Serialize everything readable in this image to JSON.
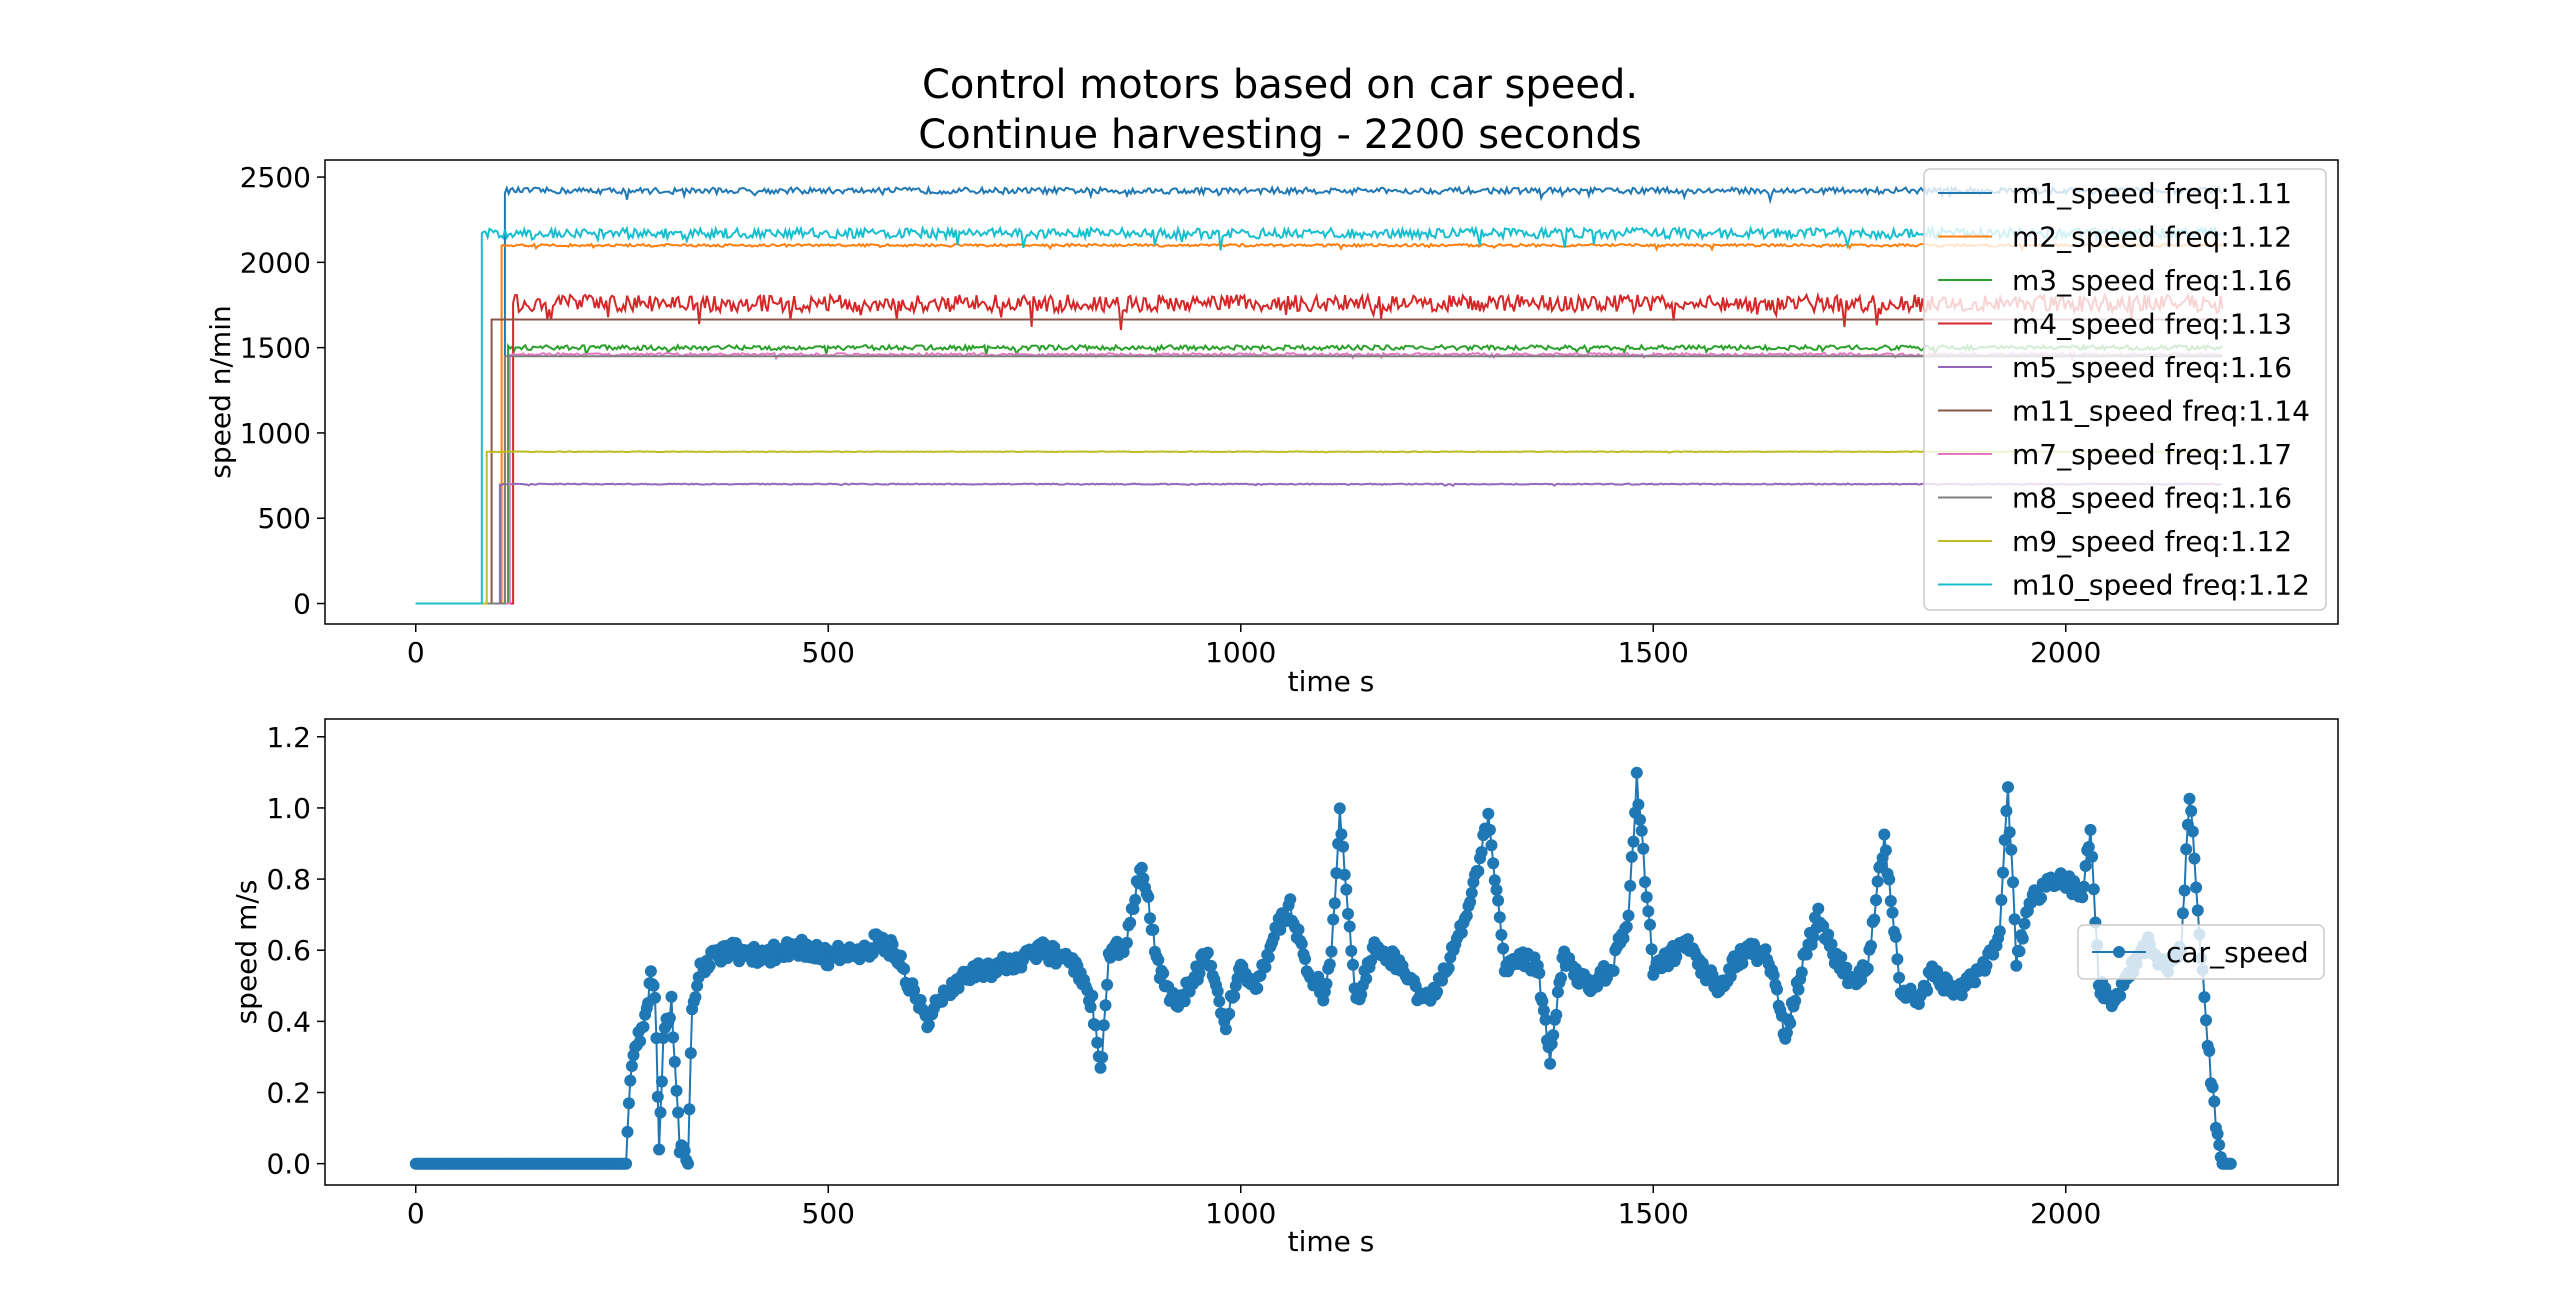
{
  "figure": {
    "title_line1": "Control motors based on car speed.",
    "title_line2": "Continue harvesting - 2200 seconds"
  },
  "chart_data": [
    {
      "type": "line",
      "xlabel": "time s",
      "ylabel": "speed n/min",
      "xlim": [
        -110,
        2330
      ],
      "ylim": [
        -120,
        2600
      ],
      "xticks": [
        0,
        500,
        1000,
        1500,
        2000
      ],
      "yticks": [
        0,
        500,
        1000,
        1500,
        2000,
        2500
      ],
      "grid": false,
      "legend_position": "top-right",
      "series": [
        {
          "name": "m1_speed freq:1.11",
          "color": "#1f77b4",
          "start": 108,
          "end": 2190,
          "value": 2420,
          "noise": 18
        },
        {
          "name": "m2_speed freq:1.12",
          "color": "#ff7f0e",
          "start": 104,
          "end": 2190,
          "value": 2100,
          "noise": 8
        },
        {
          "name": "m3_speed freq:1.16",
          "color": "#2ca02c",
          "start": 112,
          "end": 2190,
          "value": 1500,
          "noise": 14
        },
        {
          "name": "m4_speed freq:1.13",
          "color": "#d62728",
          "start": 118,
          "end": 2190,
          "value": 1760,
          "noise": 50
        },
        {
          "name": "m5_speed freq:1.16",
          "color": "#9467bd",
          "start": 102,
          "end": 2190,
          "value": 700,
          "noise": 3
        },
        {
          "name": "m11_speed freq:1.14",
          "color": "#8c564b",
          "start": 92,
          "end": 2190,
          "value": 1665,
          "noise": 0
        },
        {
          "name": "m7_speed freq:1.17",
          "color": "#e377c2",
          "start": 114,
          "end": 2190,
          "value": 1460,
          "noise": 8
        },
        {
          "name": "m8_speed freq:1.16",
          "color": "#7f7f7f",
          "start": 108,
          "end": 2190,
          "value": 1450,
          "noise": 0
        },
        {
          "name": "m9_speed freq:1.12",
          "color": "#bcbd22",
          "start": 86,
          "end": 2190,
          "value": 890,
          "noise": 2
        },
        {
          "name": "m10_speed freq:1.12",
          "color": "#17becf",
          "start": 80,
          "end": 2190,
          "value": 2170,
          "noise": 30
        }
      ]
    },
    {
      "type": "line",
      "xlabel": "time s",
      "ylabel": "speed m/s",
      "xlim": [
        -110,
        2330
      ],
      "ylim": [
        -0.06,
        1.25
      ],
      "xticks": [
        0,
        500,
        1000,
        1500,
        2000
      ],
      "yticks": [
        0.0,
        0.2,
        0.4,
        0.6,
        0.8,
        1.0,
        1.2
      ],
      "grid": false,
      "legend_position": "center-right",
      "series": [
        {
          "name": "car_speed",
          "color": "#1f77b4",
          "marker": "circle",
          "x": [
            0,
            255,
            260,
            270,
            280,
            285,
            290,
            295,
            300,
            310,
            320,
            330,
            335,
            345,
            360,
            380,
            400,
            420,
            440,
            460,
            480,
            500,
            520,
            540,
            560,
            580,
            600,
            620,
            640,
            660,
            680,
            700,
            720,
            740,
            760,
            780,
            800,
            820,
            830,
            840,
            860,
            880,
            900,
            920,
            940,
            960,
            980,
            1000,
            1020,
            1040,
            1060,
            1080,
            1100,
            1110,
            1120,
            1140,
            1160,
            1180,
            1200,
            1220,
            1240,
            1260,
            1280,
            1300,
            1320,
            1340,
            1360,
            1375,
            1390,
            1420,
            1450,
            1470,
            1480,
            1500,
            1520,
            1540,
            1560,
            1580,
            1600,
            1620,
            1640,
            1660,
            1680,
            1700,
            1720,
            1740,
            1760,
            1780,
            1800,
            1820,
            1840,
            1860,
            1880,
            1900,
            1920,
            1930,
            1940,
            1960,
            1980,
            2000,
            2020,
            2030,
            2040,
            2060,
            2080,
            2100,
            2120,
            2140,
            2150,
            2160,
            2170,
            2180,
            2190,
            2200
          ],
          "y": [
            0.0,
            0.0,
            0.25,
            0.35,
            0.42,
            0.55,
            0.48,
            0.05,
            0.35,
            0.45,
            0.05,
            0.0,
            0.45,
            0.55,
            0.58,
            0.6,
            0.59,
            0.58,
            0.6,
            0.61,
            0.6,
            0.58,
            0.6,
            0.58,
            0.63,
            0.6,
            0.5,
            0.4,
            0.48,
            0.52,
            0.54,
            0.55,
            0.56,
            0.58,
            0.6,
            0.58,
            0.55,
            0.45,
            0.25,
            0.58,
            0.62,
            0.85,
            0.55,
            0.45,
            0.5,
            0.6,
            0.38,
            0.55,
            0.5,
            0.65,
            0.72,
            0.55,
            0.48,
            0.6,
            0.98,
            0.45,
            0.6,
            0.58,
            0.55,
            0.45,
            0.5,
            0.62,
            0.75,
            0.98,
            0.55,
            0.58,
            0.55,
            0.3,
            0.58,
            0.5,
            0.55,
            0.7,
            1.08,
            0.55,
            0.58,
            0.62,
            0.55,
            0.5,
            0.57,
            0.6,
            0.58,
            0.35,
            0.55,
            0.7,
            0.58,
            0.52,
            0.55,
            0.92,
            0.5,
            0.45,
            0.55,
            0.48,
            0.5,
            0.55,
            0.65,
            1.05,
            0.58,
            0.75,
            0.78,
            0.8,
            0.75,
            0.95,
            0.5,
            0.45,
            0.55,
            0.62,
            0.55,
            0.6,
            1.05,
            0.7,
            0.4,
            0.15,
            0.0,
            0.0
          ]
        }
      ]
    }
  ]
}
